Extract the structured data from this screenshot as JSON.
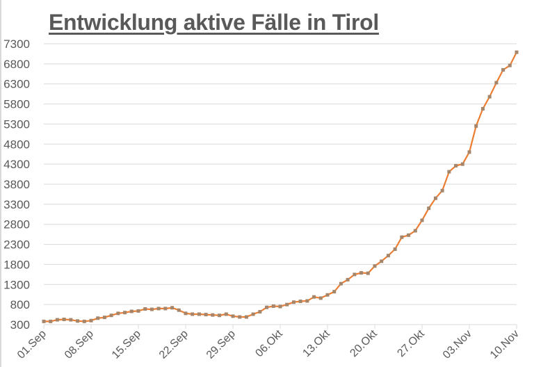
{
  "title": "Entwicklung aktive Fälle in Tirol",
  "colors": {
    "line": "#ED7D31",
    "marker": "#A5866A",
    "grid": "#D9D9D9",
    "text": "#595959"
  },
  "chart_data": {
    "type": "line",
    "title": "Entwicklung aktive Fälle in Tirol",
    "xlabel": "",
    "ylabel": "",
    "ylim": [
      300,
      7300
    ],
    "yticks": [
      300,
      800,
      1300,
      1800,
      2300,
      2800,
      3300,
      3800,
      4300,
      4800,
      5300,
      5800,
      6300,
      6800,
      7300
    ],
    "xtick_labels": [
      "01.Sep",
      "08.Sep",
      "15.Sep",
      "22.Sep",
      "29.Sep",
      "06.Okt",
      "13.Okt",
      "20.Okt",
      "27.Okt",
      "03.Nov",
      "10.Nov"
    ],
    "grid": true,
    "legend": "none",
    "x_start": "01.Sep",
    "x_end": "10.Nov",
    "series": [
      {
        "name": "aktive Fälle",
        "values": [
          380,
          380,
          420,
          430,
          420,
          390,
          380,
          400,
          460,
          480,
          530,
          580,
          600,
          630,
          640,
          690,
          680,
          700,
          700,
          720,
          660,
          580,
          560,
          560,
          550,
          540,
          530,
          560,
          510,
          490,
          490,
          560,
          620,
          730,
          760,
          750,
          800,
          860,
          880,
          890,
          990,
          960,
          1040,
          1120,
          1320,
          1420,
          1550,
          1590,
          1580,
          1760,
          1880,
          2020,
          2180,
          2480,
          2530,
          2640,
          2900,
          3200,
          3450,
          3640,
          4110,
          4260,
          4300,
          4600,
          5250,
          5680,
          5980,
          6330,
          6650,
          6760,
          7090
        ]
      }
    ]
  }
}
